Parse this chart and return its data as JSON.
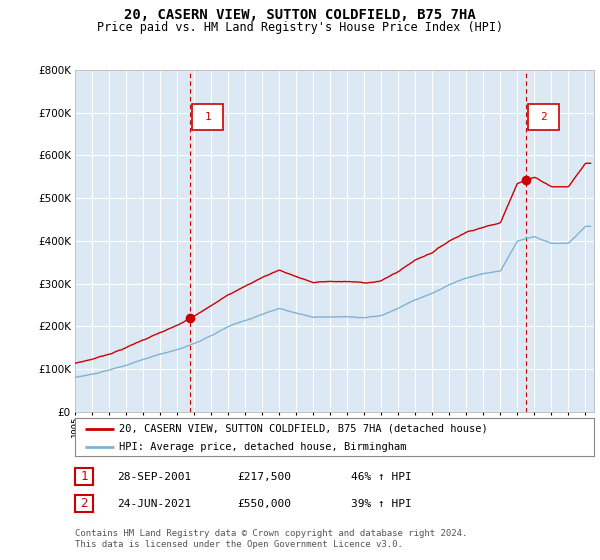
{
  "title": "20, CASERN VIEW, SUTTON COLDFIELD, B75 7HA",
  "subtitle": "Price paid vs. HM Land Registry's House Price Index (HPI)",
  "ylim": [
    0,
    800000
  ],
  "yticks": [
    0,
    100000,
    200000,
    300000,
    400000,
    500000,
    600000,
    700000,
    800000
  ],
  "xlim_start": 1995.0,
  "xlim_end": 2025.5,
  "sale1_date": 2001.75,
  "sale1_price": 217500,
  "sale2_date": 2021.5,
  "sale2_price": 550000,
  "line1_color": "#cc0000",
  "line2_color": "#7fb3d3",
  "plot_bg_color": "#dce9f5",
  "legend1": "20, CASERN VIEW, SUTTON COLDFIELD, B75 7HA (detached house)",
  "legend2": "HPI: Average price, detached house, Birmingham",
  "table_rows": [
    {
      "num": "1",
      "date": "28-SEP-2001",
      "price": "£217,500",
      "change": "46% ↑ HPI"
    },
    {
      "num": "2",
      "date": "24-JUN-2021",
      "price": "£550,000",
      "change": "39% ↑ HPI"
    }
  ],
  "footnote": "Contains HM Land Registry data © Crown copyright and database right 2024.\nThis data is licensed under the Open Government Licence v3.0.",
  "background_color": "#ffffff",
  "grid_color": "#aaaacc"
}
